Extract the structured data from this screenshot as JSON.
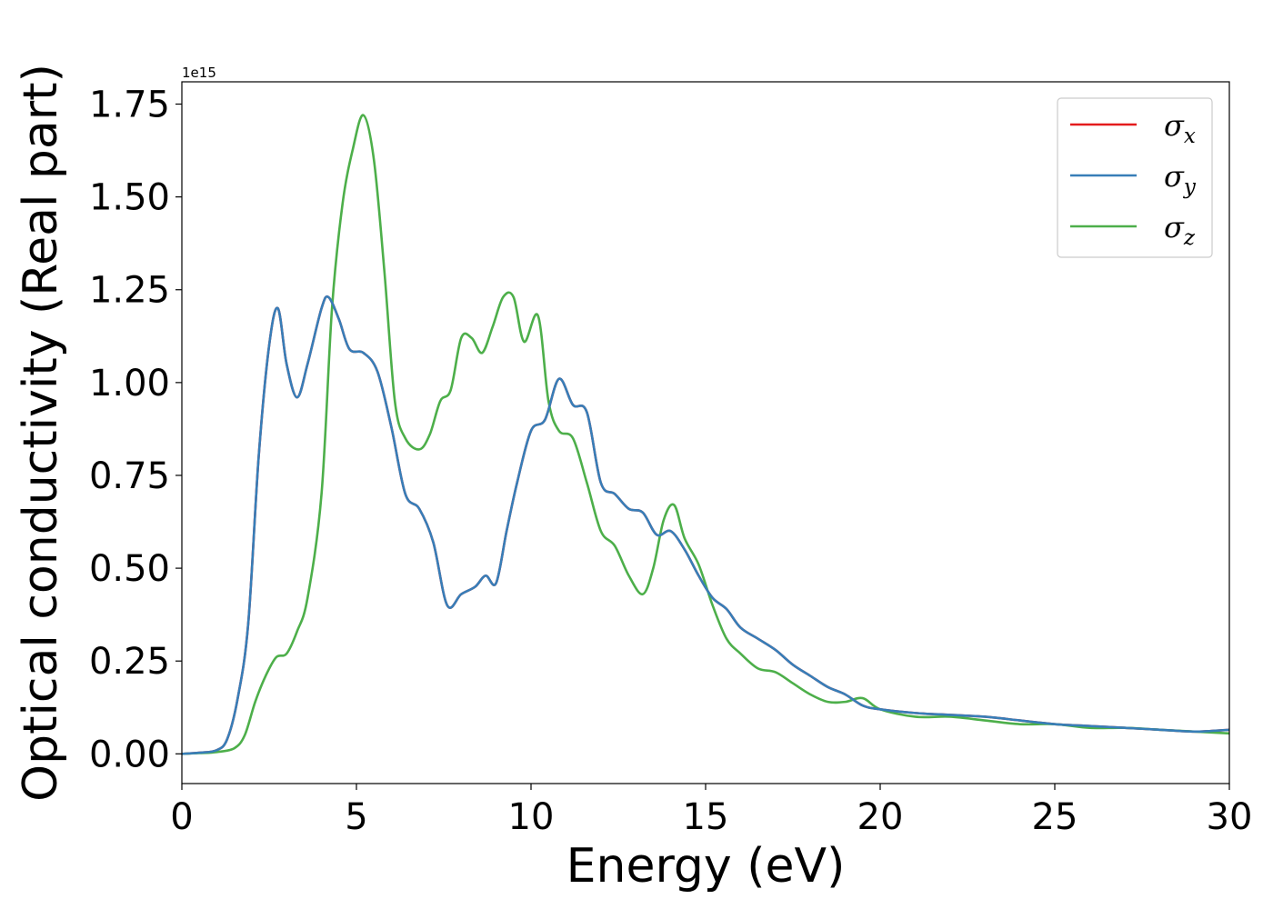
{
  "chart_data": {
    "type": "line",
    "xlabel": "Energy (eV)",
    "ylabel": "Optical conductivity (Real part)",
    "y_offset_text": "1e15",
    "xlim": [
      0,
      30
    ],
    "ylim": [
      -0.08,
      1.81
    ],
    "x_ticks": [
      0,
      5,
      10,
      15,
      20,
      25,
      30
    ],
    "x_tick_labels": [
      "0",
      "5",
      "10",
      "15",
      "20",
      "25",
      "30"
    ],
    "y_ticks": [
      0.0,
      0.25,
      0.5,
      0.75,
      1.0,
      1.25,
      1.5,
      1.75
    ],
    "y_tick_labels": [
      "0.00",
      "0.25",
      "0.50",
      "0.75",
      "1.00",
      "1.25",
      "1.50",
      "1.75"
    ],
    "grid": false,
    "legend_position": "upper-right",
    "series": [
      {
        "name": "σx",
        "symbol": "σ",
        "subscript": "x",
        "color": "#e41a1c",
        "x": [
          0,
          0.5,
          1,
          1.3,
          1.6,
          1.9,
          2.2,
          2.5,
          2.75,
          3,
          3.3,
          3.6,
          4,
          4.2,
          4.5,
          4.8,
          5.2,
          5.6,
          6,
          6.4,
          6.8,
          7.2,
          7.6,
          8,
          8.4,
          8.7,
          9,
          9.3,
          9.6,
          10,
          10.4,
          10.8,
          11.2,
          11.6,
          12,
          12.4,
          12.8,
          13.2,
          13.6,
          14,
          14.4,
          14.8,
          15.2,
          15.6,
          16,
          16.5,
          17,
          17.5,
          18,
          18.5,
          19,
          19.5,
          20,
          21,
          22,
          23,
          24,
          25,
          26,
          27,
          28,
          29,
          30
        ],
        "y": [
          0,
          0.003,
          0.01,
          0.04,
          0.15,
          0.35,
          0.8,
          1.1,
          1.2,
          1.05,
          0.96,
          1.05,
          1.2,
          1.23,
          1.17,
          1.09,
          1.08,
          1.03,
          0.88,
          0.7,
          0.66,
          0.57,
          0.4,
          0.43,
          0.45,
          0.48,
          0.46,
          0.6,
          0.73,
          0.87,
          0.9,
          1.01,
          0.94,
          0.92,
          0.73,
          0.7,
          0.66,
          0.65,
          0.59,
          0.6,
          0.55,
          0.48,
          0.42,
          0.39,
          0.34,
          0.31,
          0.28,
          0.24,
          0.21,
          0.18,
          0.16,
          0.13,
          0.12,
          0.11,
          0.105,
          0.1,
          0.09,
          0.08,
          0.075,
          0.07,
          0.065,
          0.06,
          0.065
        ]
      },
      {
        "name": "σy",
        "symbol": "σ",
        "subscript": "y",
        "color": "#377eb8",
        "x": [
          0,
          0.5,
          1,
          1.3,
          1.6,
          1.9,
          2.2,
          2.5,
          2.75,
          3,
          3.3,
          3.6,
          4,
          4.2,
          4.5,
          4.8,
          5.2,
          5.6,
          6,
          6.4,
          6.8,
          7.2,
          7.6,
          8,
          8.4,
          8.7,
          9,
          9.3,
          9.6,
          10,
          10.4,
          10.8,
          11.2,
          11.6,
          12,
          12.4,
          12.8,
          13.2,
          13.6,
          14,
          14.4,
          14.8,
          15.2,
          15.6,
          16,
          16.5,
          17,
          17.5,
          18,
          18.5,
          19,
          19.5,
          20,
          21,
          22,
          23,
          24,
          25,
          26,
          27,
          28,
          29,
          30
        ],
        "y": [
          0,
          0.003,
          0.01,
          0.04,
          0.15,
          0.35,
          0.8,
          1.1,
          1.2,
          1.05,
          0.96,
          1.05,
          1.2,
          1.23,
          1.17,
          1.09,
          1.08,
          1.03,
          0.88,
          0.7,
          0.66,
          0.57,
          0.4,
          0.43,
          0.45,
          0.48,
          0.46,
          0.6,
          0.73,
          0.87,
          0.9,
          1.01,
          0.94,
          0.92,
          0.73,
          0.7,
          0.66,
          0.65,
          0.59,
          0.6,
          0.55,
          0.48,
          0.42,
          0.39,
          0.34,
          0.31,
          0.28,
          0.24,
          0.21,
          0.18,
          0.16,
          0.13,
          0.12,
          0.11,
          0.105,
          0.1,
          0.09,
          0.08,
          0.075,
          0.07,
          0.065,
          0.06,
          0.065
        ]
      },
      {
        "name": "σz",
        "symbol": "σ",
        "subscript": "z",
        "color": "#4daf4a",
        "x": [
          0,
          0.5,
          1,
          1.5,
          1.8,
          2.1,
          2.4,
          2.7,
          3,
          3.3,
          3.6,
          4,
          4.3,
          4.6,
          4.9,
          5.2,
          5.5,
          5.8,
          6.1,
          6.4,
          6.8,
          7.1,
          7.4,
          7.7,
          8,
          8.3,
          8.6,
          8.9,
          9.2,
          9.5,
          9.8,
          10.2,
          10.5,
          10.8,
          11.2,
          11.6,
          12,
          12.4,
          12.8,
          13.2,
          13.5,
          13.8,
          14.1,
          14.4,
          14.8,
          15.2,
          15.6,
          16,
          16.5,
          17,
          17.5,
          18,
          18.5,
          19,
          19.5,
          20,
          21,
          22,
          23,
          24,
          25,
          26,
          27,
          28,
          29,
          30
        ],
        "y": [
          0,
          0.002,
          0.005,
          0.015,
          0.05,
          0.14,
          0.21,
          0.26,
          0.27,
          0.33,
          0.42,
          0.7,
          1.2,
          1.48,
          1.63,
          1.72,
          1.6,
          1.3,
          0.95,
          0.85,
          0.82,
          0.86,
          0.95,
          0.98,
          1.12,
          1.12,
          1.08,
          1.15,
          1.23,
          1.23,
          1.11,
          1.18,
          0.95,
          0.87,
          0.85,
          0.73,
          0.6,
          0.56,
          0.48,
          0.43,
          0.5,
          0.63,
          0.67,
          0.58,
          0.51,
          0.4,
          0.31,
          0.27,
          0.23,
          0.22,
          0.19,
          0.16,
          0.14,
          0.14,
          0.15,
          0.12,
          0.1,
          0.1,
          0.09,
          0.08,
          0.08,
          0.07,
          0.07,
          0.065,
          0.06,
          0.055
        ]
      }
    ]
  }
}
